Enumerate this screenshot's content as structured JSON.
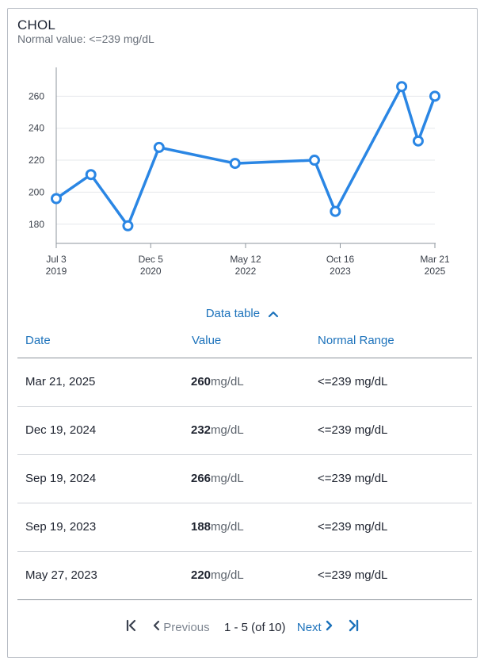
{
  "header": {
    "title": "CHOL",
    "subtitle": "Normal value: <=239 mg/dL"
  },
  "chart_data": {
    "type": "line",
    "yticks": [
      180,
      200,
      220,
      240,
      260
    ],
    "ylim": [
      168,
      278
    ],
    "xticks": [
      {
        "date": "2019-07-03",
        "line1": "Jul 3",
        "line2": "2019"
      },
      {
        "date": "2020-12-05",
        "line1": "Dec 5",
        "line2": "2020"
      },
      {
        "date": "2022-05-12",
        "line1": "May 12",
        "line2": "2022"
      },
      {
        "date": "2023-10-16",
        "line1": "Oct 16",
        "line2": "2023"
      },
      {
        "date": "2025-03-21",
        "line1": "Mar 21",
        "line2": "2025"
      }
    ],
    "grid": true,
    "color": "#2a86e4",
    "series": [
      {
        "points": [
          {
            "x": "2019-07-03",
            "y": 196
          },
          {
            "x": "2020-01-10",
            "y": 211
          },
          {
            "x": "2020-08-01",
            "y": 179
          },
          {
            "x": "2021-01-20",
            "y": 228
          },
          {
            "x": "2022-03-15",
            "y": 218
          },
          {
            "x": "2023-05-27",
            "y": 220
          },
          {
            "x": "2023-09-19",
            "y": 188
          },
          {
            "x": "2024-09-19",
            "y": 266
          },
          {
            "x": "2024-12-19",
            "y": 232
          },
          {
            "x": "2025-03-21",
            "y": 260
          }
        ]
      }
    ]
  },
  "data_table": {
    "toggle_label": "Data table",
    "headers": {
      "date": "Date",
      "value": "Value",
      "range": "Normal Range"
    },
    "rows": [
      {
        "date": "Mar 21, 2025",
        "value": "260",
        "unit": "mg/dL",
        "range": "<=239 mg/dL"
      },
      {
        "date": "Dec 19, 2024",
        "value": "232",
        "unit": "mg/dL",
        "range": "<=239 mg/dL"
      },
      {
        "date": "Sep 19, 2024",
        "value": "266",
        "unit": "mg/dL",
        "range": "<=239 mg/dL"
      },
      {
        "date": "Sep 19, 2023",
        "value": "188",
        "unit": "mg/dL",
        "range": "<=239 mg/dL"
      },
      {
        "date": "May 27, 2023",
        "value": "220",
        "unit": "mg/dL",
        "range": "<=239 mg/dL"
      }
    ]
  },
  "pagination": {
    "first_icon": "first-page-icon",
    "prev_icon": "chevron-left-icon",
    "prev_label": "Previous",
    "count": "1 - 5 (of 10)",
    "next_label": "Next",
    "next_icon": "chevron-right-icon",
    "last_icon": "last-page-icon"
  }
}
